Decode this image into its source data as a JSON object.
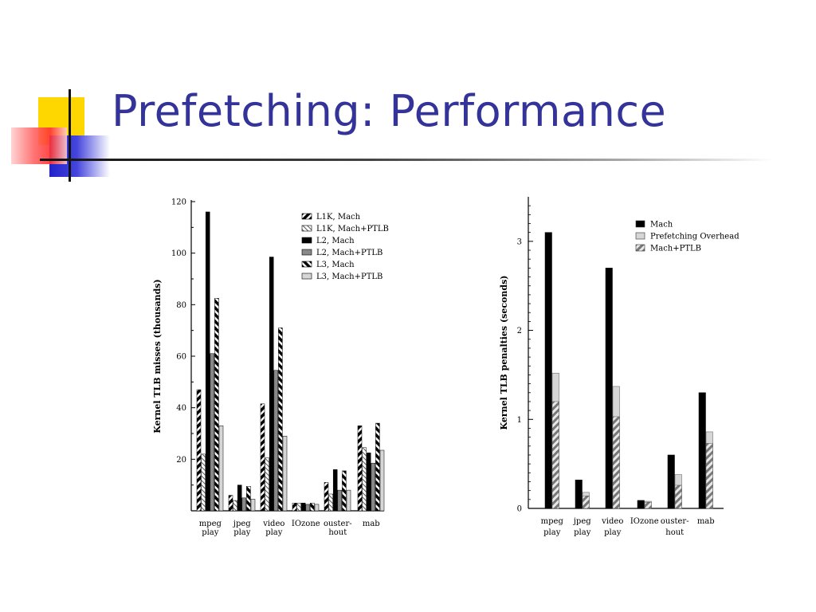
{
  "slide": {
    "title": "Prefetching: Performance",
    "colors": {
      "title": "#333399",
      "accent_yellow": "#ffd700",
      "accent_blue": "#3333cc",
      "accent_red": "#ff4d4d"
    }
  },
  "chart_data": [
    {
      "type": "bar",
      "ylabel": "Kernel TLB misses (thousands)",
      "xlabel": "",
      "ylim": [
        0,
        120
      ],
      "yticks": [
        "20",
        "40",
        "60",
        "80",
        "100",
        "120"
      ],
      "legend_position": "top-right",
      "categories": [
        {
          "line1": "mpeg",
          "line2": "play"
        },
        {
          "line1": "jpeg",
          "line2": "play"
        },
        {
          "line1": "video",
          "line2": "play"
        },
        {
          "line1": "IOzone",
          "line2": ""
        },
        {
          "line1": "ouster-",
          "line2": "hout"
        },
        {
          "line1": "mab",
          "line2": ""
        }
      ],
      "series": [
        {
          "name": "L1K, Mach",
          "pattern": "diag-bw",
          "values": [
            47,
            6,
            41.5,
            3,
            11,
            33
          ]
        },
        {
          "name": "L1K, Mach+PTLB",
          "pattern": "diag-wl",
          "values": [
            22,
            4,
            20.5,
            3,
            6.5,
            24.5
          ]
        },
        {
          "name": "L2, Mach",
          "pattern": "black",
          "values": [
            116,
            10,
            98.5,
            3,
            16,
            22.5
          ]
        },
        {
          "name": "L2, Mach+PTLB",
          "pattern": "gray",
          "values": [
            61,
            5,
            54.5,
            2.5,
            8,
            18.5
          ]
        },
        {
          "name": "L3, Mach",
          "pattern": "diag-bw2",
          "values": [
            82.5,
            9.5,
            71,
            3,
            15.5,
            34
          ]
        },
        {
          "name": "L3, Mach+PTLB",
          "pattern": "light",
          "values": [
            33,
            4.5,
            29,
            2.5,
            8,
            23.5
          ]
        }
      ]
    },
    {
      "type": "bar",
      "ylabel": "Kernel TLB penalties (seconds)",
      "xlabel": "",
      "ylim": [
        0,
        3.5
      ],
      "yticks": [
        "0",
        "1",
        "2",
        "3"
      ],
      "legend_position": "top-right",
      "categories": [
        {
          "line1": "mpeg",
          "line2": "play"
        },
        {
          "line1": "jpeg",
          "line2": "play"
        },
        {
          "line1": "video",
          "line2": "play"
        },
        {
          "line1": "IOzone",
          "line2": ""
        },
        {
          "line1": "ouster-",
          "line2": "hout"
        },
        {
          "line1": "mab",
          "line2": ""
        }
      ],
      "series": [
        {
          "name": "Mach",
          "pattern": "black",
          "values": [
            3.1,
            0.32,
            2.7,
            0.09,
            0.6,
            1.3
          ]
        },
        {
          "name": "Prefetching Overhead",
          "pattern": "light",
          "values": [
            1.52,
            0.18,
            1.37,
            0.08,
            0.38,
            0.86
          ]
        },
        {
          "name": "Mach+PTLB",
          "pattern": "diag-gray",
          "values": [
            1.2,
            0.14,
            1.03,
            0.07,
            0.26,
            0.73
          ]
        }
      ]
    }
  ]
}
